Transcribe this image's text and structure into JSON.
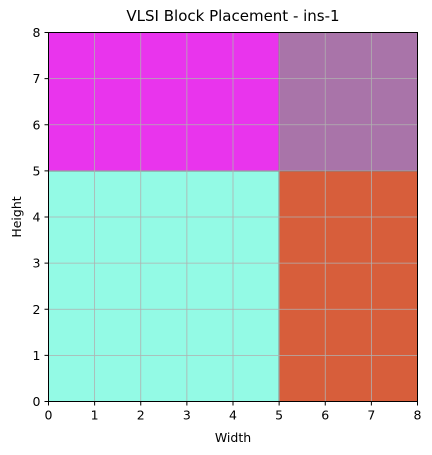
{
  "chart_data": {
    "type": "table",
    "title": "VLSI Block Placement - ins-1",
    "xlabel": "Width",
    "ylabel": "Height",
    "xlim": [
      0,
      8
    ],
    "ylim": [
      0,
      8
    ],
    "xticks": [
      "0",
      "1",
      "2",
      "3",
      "4",
      "5",
      "6",
      "7",
      "8"
    ],
    "yticks": [
      "0",
      "1",
      "2",
      "3",
      "4",
      "5",
      "6",
      "7",
      "8"
    ],
    "grid": true,
    "blocks": [
      {
        "x": 0,
        "y": 0,
        "width": 5,
        "height": 5,
        "color": "#93fae5"
      },
      {
        "x": 5,
        "y": 0,
        "width": 3,
        "height": 5,
        "color": "#d75e3b"
      },
      {
        "x": 0,
        "y": 5,
        "width": 5,
        "height": 3,
        "color": "#e934ed"
      },
      {
        "x": 5,
        "y": 5,
        "width": 3,
        "height": 3,
        "color": "#a974a9"
      }
    ],
    "grid_color": "#b0b0b0"
  }
}
